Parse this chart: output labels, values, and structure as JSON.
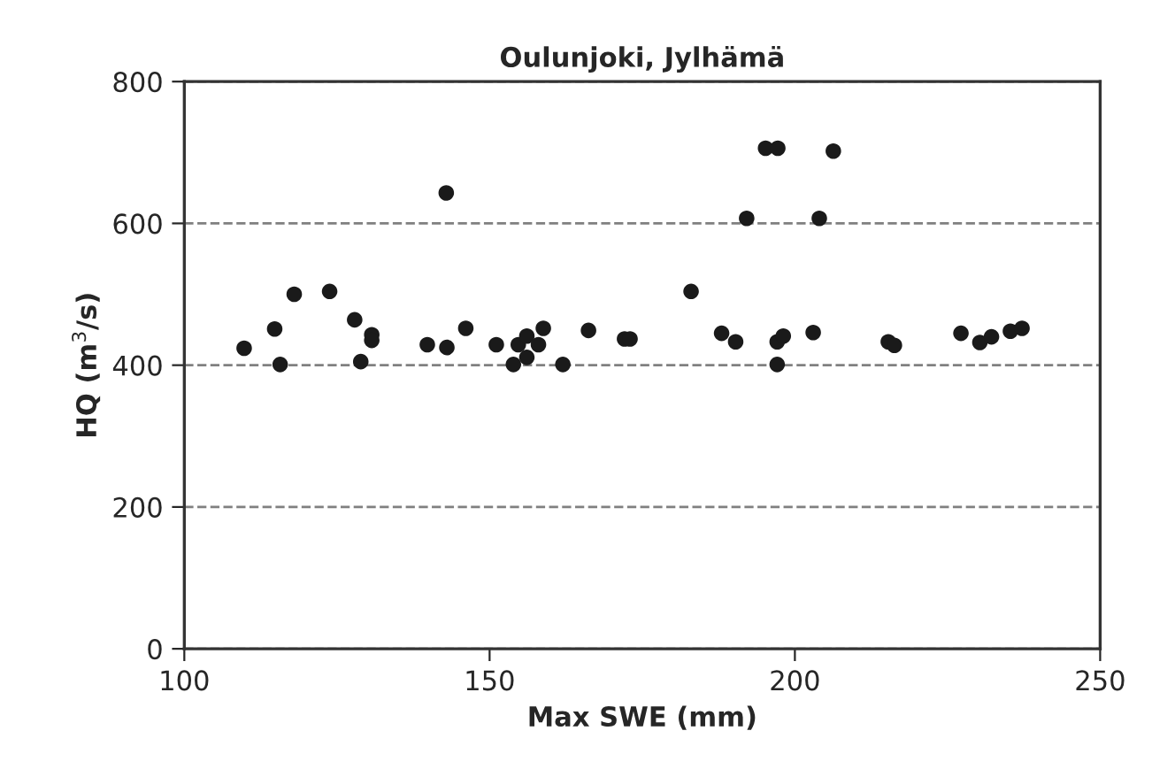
{
  "chart_data": {
    "type": "scatter",
    "title": "Oulunjoki, Jylhämä",
    "xlabel": "Max SWE (mm)",
    "ylabel": "HQ (m$^{3}$/s)",
    "x": [
      109.8,
      114.8,
      115.7,
      118.0,
      123.8,
      127.9,
      128.9,
      130.7,
      130.7,
      139.8,
      142.9,
      143.0,
      146.1,
      151.1,
      153.9,
      154.7,
      156.1,
      156.1,
      158.0,
      158.8,
      162.0,
      166.2,
      172.1,
      173.0,
      183.0,
      188.0,
      190.3,
      192.1,
      195.2,
      197.2,
      197.1,
      197.1,
      198.1,
      203.0,
      204.0,
      206.3,
      215.3,
      216.3,
      227.2,
      230.3,
      232.2,
      235.3,
      237.2
    ],
    "values": [
      424,
      451,
      401,
      500,
      504,
      464,
      405,
      443,
      435,
      429,
      643,
      425,
      452,
      429,
      401,
      429,
      441,
      411,
      429,
      452,
      401,
      449,
      437,
      437,
      504,
      445,
      433,
      607,
      706,
      706,
      401,
      433,
      441,
      446,
      607,
      702,
      433,
      428,
      445,
      432,
      440,
      448,
      452
    ],
    "color": "#1a1a1a",
    "marker": "circle",
    "xlim": [
      100,
      250
    ],
    "xticks": [
      100,
      150,
      200,
      250
    ],
    "ylim": [
      0,
      800
    ],
    "yticks": [
      0,
      200,
      400,
      600,
      800
    ],
    "grid": "y",
    "line_style": "dashed"
  }
}
